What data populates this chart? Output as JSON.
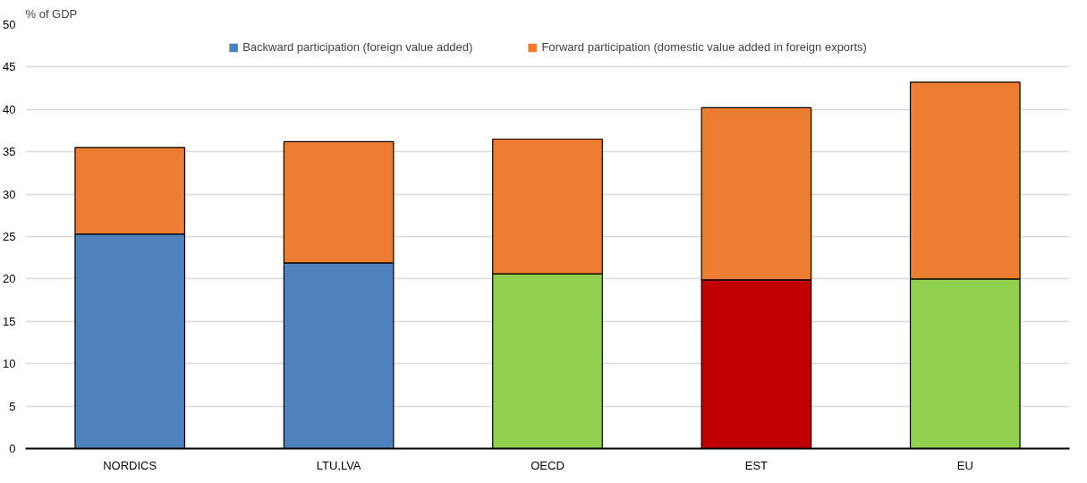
{
  "chart_data": {
    "type": "bar",
    "ylabel": "% of GDP",
    "stacked": true,
    "categories": [
      "NORDICS",
      "LTU,LVA",
      "OECD",
      "EST",
      "EU"
    ],
    "series": [
      {
        "name": "Backward participation (foreign value added)",
        "color": "#4f81bd",
        "colors": [
          "#4f81bd",
          "#4f81bd",
          "#92d050",
          "#c00000",
          "#92d050"
        ],
        "values": [
          25.3,
          21.9,
          20.6,
          19.9,
          20.0
        ]
      },
      {
        "name": "Forward participation (domestic value added in foreign exports)",
        "color": "#ed7d31",
        "values": [
          10.2,
          14.3,
          15.9,
          20.3,
          23.2
        ]
      }
    ],
    "ylim": [
      0,
      50
    ],
    "yticks": [
      0,
      5,
      10,
      15,
      20,
      25,
      30,
      35,
      40,
      45,
      50
    ],
    "grid": "y",
    "legend": "top"
  }
}
